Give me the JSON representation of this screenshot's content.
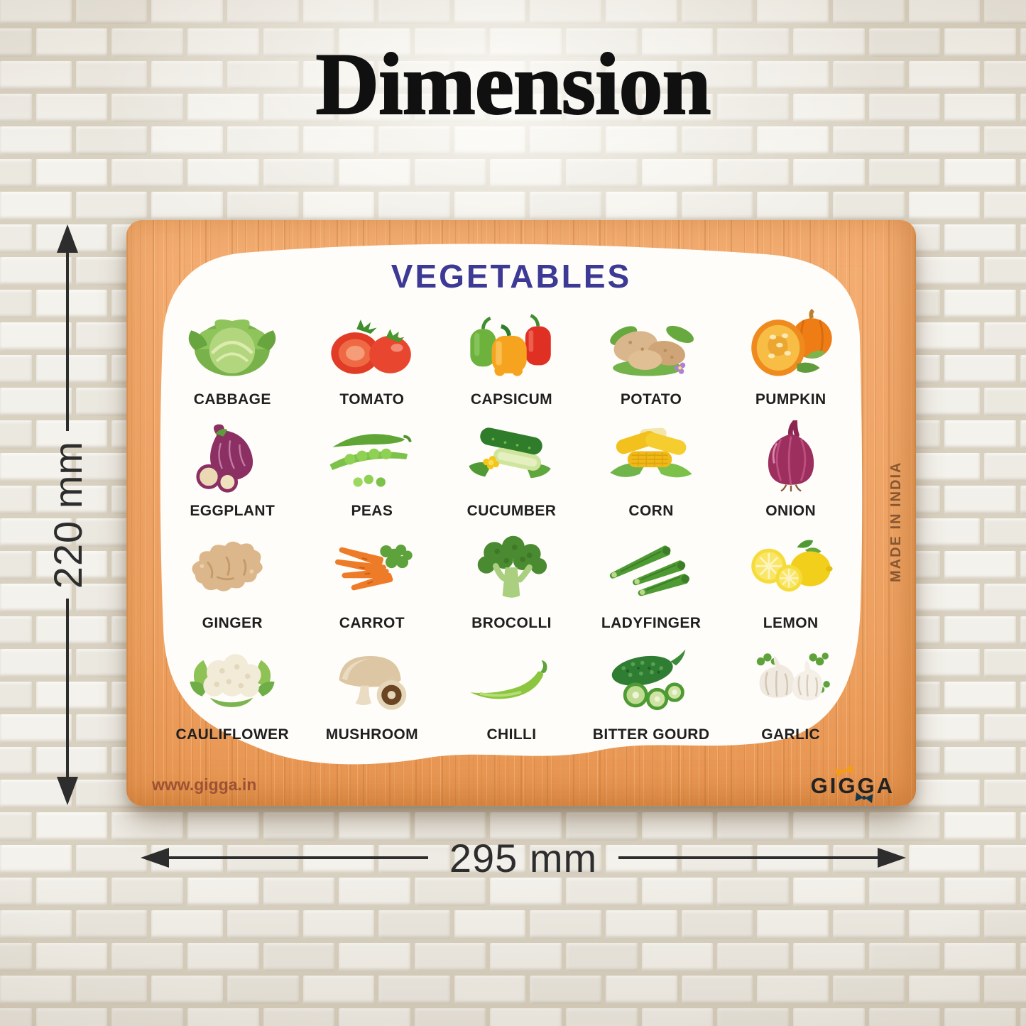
{
  "page": {
    "heading": "Dimension"
  },
  "board": {
    "poster_title": "VEGETABLES",
    "made_in_label": "MADE IN INDIA",
    "website": "www.gigga.in",
    "brand": "GIGGA",
    "vegetables": [
      {
        "id": "cabbage",
        "label": "CABBAGE"
      },
      {
        "id": "tomato",
        "label": "TOMATO"
      },
      {
        "id": "capsicum",
        "label": "CAPSICUM"
      },
      {
        "id": "potato",
        "label": "POTATO"
      },
      {
        "id": "pumpkin",
        "label": "PUMPKIN"
      },
      {
        "id": "eggplant",
        "label": "EGGPLANT"
      },
      {
        "id": "peas",
        "label": "PEAS"
      },
      {
        "id": "cucumber",
        "label": "CUCUMBER"
      },
      {
        "id": "corn",
        "label": "CORN"
      },
      {
        "id": "onion",
        "label": "ONION"
      },
      {
        "id": "ginger",
        "label": "GINGER"
      },
      {
        "id": "carrot",
        "label": "CARROT"
      },
      {
        "id": "brocolli",
        "label": "BROCOLLI"
      },
      {
        "id": "ladyfinger",
        "label": "LADYFINGER"
      },
      {
        "id": "lemon",
        "label": "LEMON"
      },
      {
        "id": "cauliflower",
        "label": "CAULIFLOWER"
      },
      {
        "id": "mushroom",
        "label": "MUSHROOM"
      },
      {
        "id": "chilli",
        "label": "CHILLI"
      },
      {
        "id": "bitter-gourd",
        "label": "BITTER GOURD"
      },
      {
        "id": "garlic",
        "label": "GARLIC"
      }
    ]
  },
  "dimensions": {
    "height": "220 mm",
    "width": "295 mm"
  },
  "colors": {
    "board_wood": "#f2a96b",
    "poster_bg": "#fffdfa",
    "poster_title": "#3d3a96",
    "veg_label": "#1f1f1f",
    "dimension_text": "#2d2d2d",
    "made_in_text": "#7c4f2c",
    "website_text": "#9c5233",
    "brand_text": "#222222",
    "brand_bow_orange": "#f59c17",
    "brand_bow_navy": "#17374a",
    "brick": "#f1efe8",
    "mortar": "#d9d1c0"
  }
}
